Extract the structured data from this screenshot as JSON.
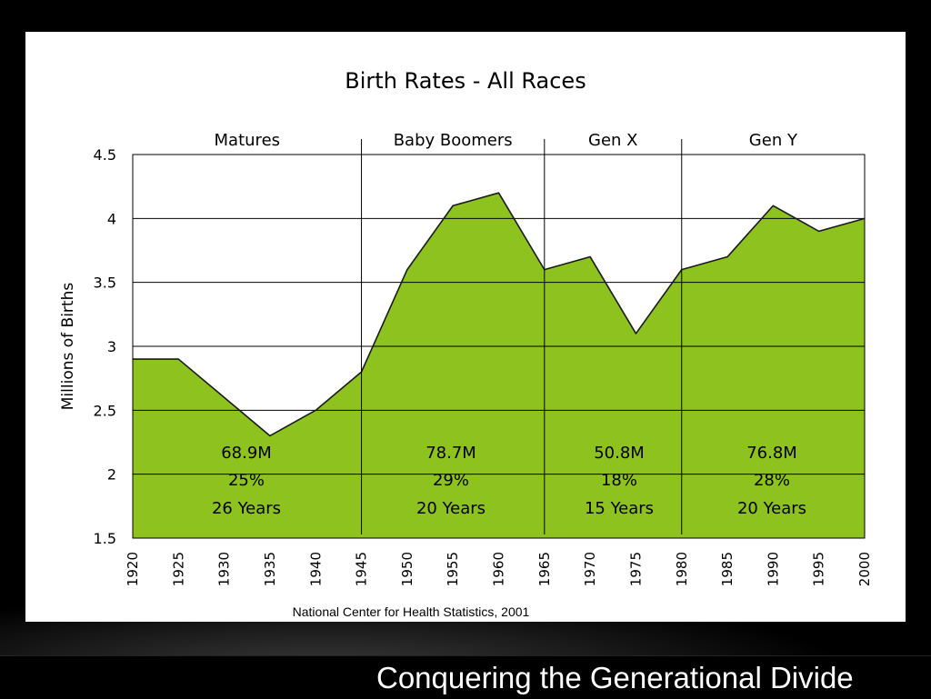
{
  "slide": {
    "footer_title": "Conquering the Generational Divide"
  },
  "colors": {
    "area_fill": "#8dc21f",
    "area_stroke": "#1a1a1a",
    "grid": "#000000",
    "background": "#ffffff"
  },
  "chart_data": {
    "type": "area",
    "title": "Birth Rates - All Races",
    "ylabel": "Millions of Births",
    "xlabel": "",
    "source": "National Center for Health Statistics, 2001",
    "ylim": [
      1.5,
      4.5
    ],
    "yticks": [
      "1.5",
      "2",
      "2.5",
      "3",
      "3.5",
      "4",
      "4.5"
    ],
    "xlim": [
      1920,
      2000
    ],
    "x": [
      "1920",
      "1925",
      "1930",
      "1935",
      "1940",
      "1945",
      "1950",
      "1955",
      "1960",
      "1965",
      "1970",
      "1975",
      "1980",
      "1985",
      "1990",
      "1995",
      "2000"
    ],
    "grid": true,
    "series": [
      {
        "values": [
          2.9,
          2.9,
          2.6,
          2.3,
          2.5,
          2.8,
          3.6,
          4.1,
          4.2,
          3.6,
          3.7,
          3.1,
          3.6,
          3.7,
          4.1,
          3.9,
          4.0
        ]
      }
    ],
    "generations": [
      {
        "name": "Matures",
        "start": 1920,
        "end": 1945,
        "total": "68.9M",
        "percent": "25%",
        "span": "26 Years"
      },
      {
        "name": "Baby Boomers",
        "start": 1945,
        "end": 1965,
        "total": "78.7M",
        "percent": "29%",
        "span": "20 Years"
      },
      {
        "name": "Gen X",
        "start": 1965,
        "end": 1980,
        "total": "50.8M",
        "percent": "18%",
        "span": "15 Years"
      },
      {
        "name": "Gen Y",
        "start": 1980,
        "end": 2000,
        "total": "76.8M",
        "percent": "28%",
        "span": "20 Years"
      }
    ]
  }
}
